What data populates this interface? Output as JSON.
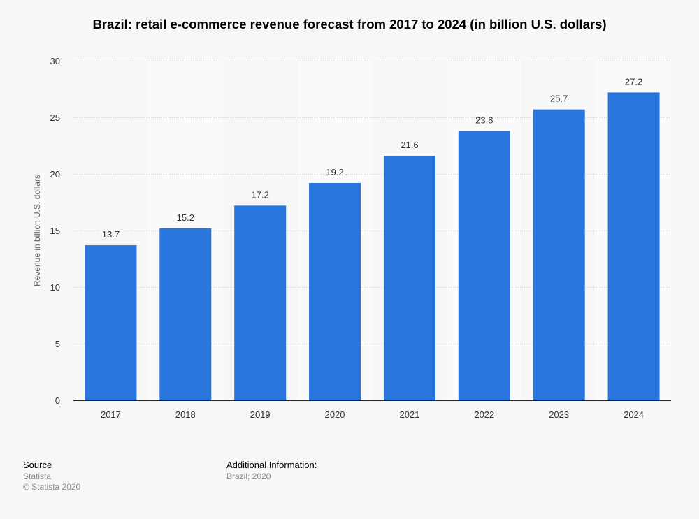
{
  "chart_data": {
    "type": "bar",
    "title": "Brazil: retail e-commerce revenue forecast from 2017 to 2024 (in billion U.S. dollars)",
    "xlabel": "",
    "ylabel": "Revenue in billion U.S. dollars",
    "categories": [
      "2017",
      "2018",
      "2019",
      "2020",
      "2021",
      "2022",
      "2023",
      "2024"
    ],
    "values": [
      13.7,
      15.2,
      17.2,
      19.2,
      21.6,
      23.8,
      25.7,
      27.2
    ],
    "value_labels": [
      "13.7",
      "15.2",
      "17.2",
      "19.2",
      "21.6",
      "23.8",
      "25.7",
      "27.2"
    ],
    "ylim": [
      0,
      30
    ],
    "yticks": [
      0,
      5,
      10,
      15,
      20,
      25,
      30
    ],
    "grid": true,
    "bar_color": "#2876dd"
  },
  "footer": {
    "source_heading": "Source",
    "source_name": "Statista",
    "copyright": "© Statista 2020",
    "additional_heading": "Additional Information:",
    "additional_text": "Brazil; 2020"
  }
}
